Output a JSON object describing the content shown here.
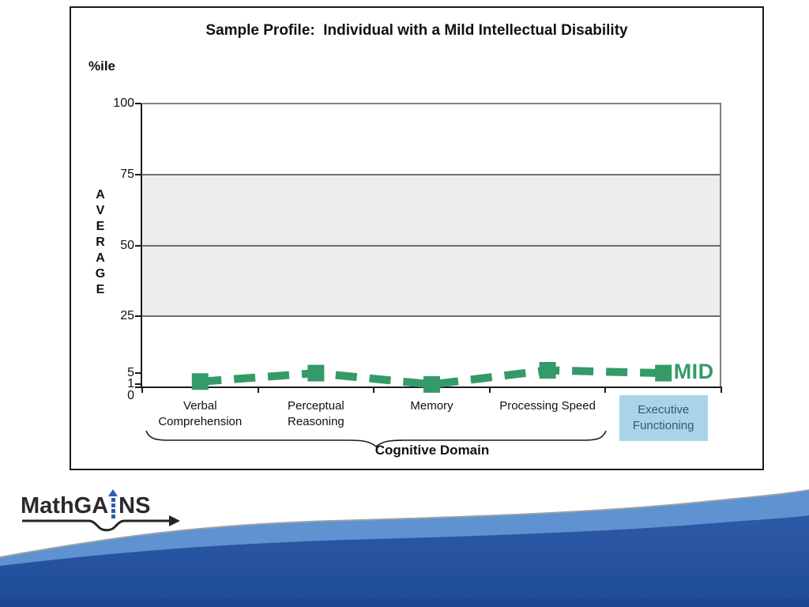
{
  "slide": {
    "title": "Sample Profile:  Individual with a Mild Intellectual Disability",
    "percentile_label": "%ile",
    "cognitive_domain_label": "Cognitive Domain",
    "logo": {
      "full_name": "MathGAINS",
      "prefix": "MathGA",
      "suffix": "NS"
    }
  },
  "chart_data": {
    "type": "line",
    "title": "Sample Profile: Individual with a Mild Intellectual Disability",
    "xlabel": "Cognitive Domain",
    "ylabel": "%ile",
    "ylim": [
      0,
      100
    ],
    "y_ticks": [
      100,
      75,
      50,
      25,
      5,
      1,
      0
    ],
    "gridlines": [
      75,
      50,
      25
    ],
    "grid_band_fill": "#ededed",
    "categories": [
      "Verbal Comprehension",
      "Perceptual Reasoning",
      "Memory",
      "Processing Speed",
      "Executive Functioning"
    ],
    "series": [
      {
        "name": "MID",
        "values": [
          2,
          5,
          1,
          6,
          5
        ],
        "color": "#349a67",
        "style": "thick-dashed-line-with-square-markers"
      }
    ],
    "average_band": {
      "label": "AVERAGE",
      "from": 25,
      "to": 75,
      "fill": "#ededed"
    },
    "brace": {
      "label": "Cognitive Domain",
      "covers_categories": [
        "Verbal Comprehension",
        "Perceptual Reasoning",
        "Memory",
        "Processing Speed"
      ]
    },
    "highlighted_category": {
      "index": 4,
      "label": "Executive Functioning",
      "fill": "#a9d3e8",
      "text_color": "#2e5a77"
    },
    "legend_position": "end-of-line"
  },
  "colors": {
    "series_green": "#349a67",
    "band_gray": "#ededed",
    "highlight_blue": "#a9d3e8",
    "highlight_text": "#2e5a77",
    "wave_light": "#5e92d0",
    "wave_edge": "#99a0a8",
    "wave_dark_top": "#2d59a7",
    "wave_dark_bottom": "#1e4b97",
    "wave_bottom_strip": "#1c4892",
    "logo_blue": "#2b5ea7",
    "logo_dark": "#2a2a2e"
  }
}
